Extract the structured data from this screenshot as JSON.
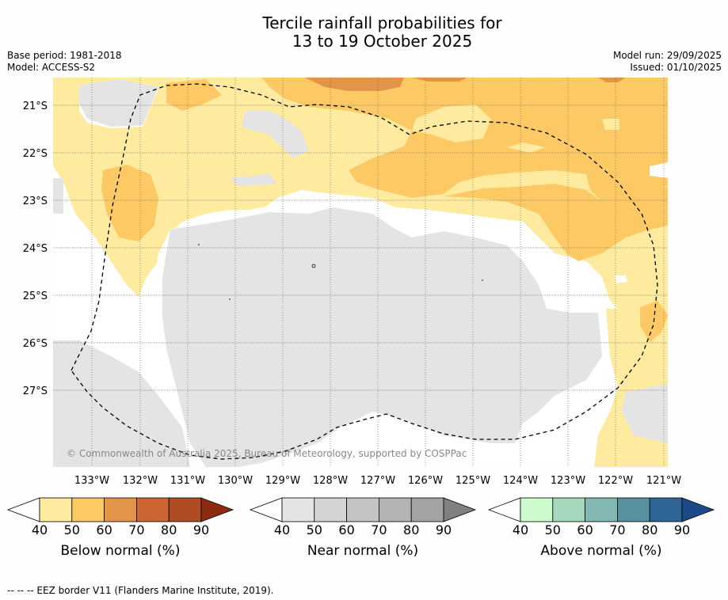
{
  "title": {
    "line1": "Tercile rainfall probabilities for",
    "line2": "13 to 19 October 2025"
  },
  "meta": {
    "base_period": "Base period: 1981-2018",
    "model": "Model: ACCESS-S2",
    "model_run": "Model run: 29/09/2025",
    "issued": "Issued: 01/10/2025"
  },
  "map": {
    "lat_labels": [
      "21°S",
      "22°S",
      "23°S",
      "24°S",
      "25°S",
      "26°S",
      "27°S"
    ],
    "lon_labels": [
      "133°W",
      "132°W",
      "131°W",
      "130°W",
      "129°W",
      "128°W",
      "127°W",
      "126°W",
      "125°W",
      "124°W",
      "123°W",
      "122°W",
      "121°W"
    ],
    "copyright": "© Commonwealth of Australia 2025, Bureau of Meteorology, supported by COSPPac",
    "colors": {
      "below_50": "#feeba0",
      "below_60": "#fdc964",
      "below_70": "#e29549",
      "near_50": "#e4e4e4",
      "near_60": "#d4d4d4",
      "white": "#ffffff"
    }
  },
  "colorbars": [
    {
      "label": "Below normal (%)",
      "ticks": [
        "40",
        "50",
        "60",
        "70",
        "80",
        "90"
      ],
      "colors": [
        "#feeba0",
        "#fdc964",
        "#e29549",
        "#cd6632",
        "#b04c24",
        "#8c2a12"
      ]
    },
    {
      "label": "Near normal (%)",
      "ticks": [
        "40",
        "50",
        "60",
        "70",
        "80",
        "90"
      ],
      "colors": [
        "#e4e4e4",
        "#d4d4d4",
        "#c4c4c4",
        "#b4b4b4",
        "#a3a3a3",
        "#808080"
      ]
    },
    {
      "label": "Above normal (%)",
      "ticks": [
        "40",
        "50",
        "60",
        "70",
        "80",
        "90"
      ],
      "colors": [
        "#ccfbcd",
        "#a4d8bd",
        "#82b8b1",
        "#5890a0",
        "#2e6594",
        "#1a4a88"
      ]
    }
  ],
  "footer": "--  --  -- EEZ border V11 (Flanders Marine Institute, 2019)."
}
